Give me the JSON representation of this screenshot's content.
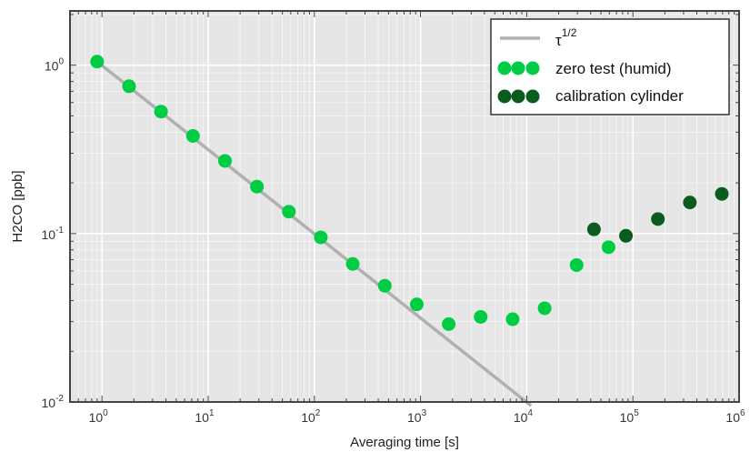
{
  "chart_data": {
    "type": "scatter",
    "title": "",
    "xlabel": "Averaging time [s]",
    "ylabel": "H2CO [ppb]",
    "xscale": "log",
    "yscale": "log",
    "xlim": [
      0.5,
      1000000
    ],
    "ylim": [
      0.01,
      2.1
    ],
    "grid": true,
    "legend_position": "top-right",
    "x_ticks": [
      {
        "base": "10",
        "exp": "0"
      },
      {
        "base": "10",
        "exp": "1"
      },
      {
        "base": "10",
        "exp": "2"
      },
      {
        "base": "10",
        "exp": "3"
      },
      {
        "base": "10",
        "exp": "4"
      },
      {
        "base": "10",
        "exp": "5"
      },
      {
        "base": "10",
        "exp": "6"
      }
    ],
    "y_ticks": [
      {
        "base": "10",
        "exp": "-2"
      },
      {
        "base": "10",
        "exp": "-1"
      },
      {
        "base": "10",
        "exp": "0"
      }
    ],
    "series": [
      {
        "name": "τ^1/2",
        "legend_label": "τ",
        "legend_exp": "1/2",
        "kind": "line",
        "color": "#b0b0b0",
        "x": [
          0.9,
          11000
        ],
        "y": [
          1.05,
          0.0095
        ]
      },
      {
        "name": "zero test (humid)",
        "kind": "scatter",
        "color": "#00cc44",
        "x": [
          0.9,
          1.8,
          3.6,
          7.2,
          14.4,
          28.8,
          57.6,
          115,
          230,
          461,
          922,
          1843,
          3686,
          7373,
          14746,
          29491,
          58982
        ],
        "y": [
          1.05,
          0.75,
          0.53,
          0.38,
          0.27,
          0.19,
          0.135,
          0.095,
          0.066,
          0.049,
          0.038,
          0.029,
          0.032,
          0.031,
          0.036,
          0.065,
          0.083
        ]
      },
      {
        "name": "calibration cylinder",
        "kind": "scatter",
        "color": "#0a5c1e",
        "x": [
          43000,
          86000,
          172000,
          344000,
          688000
        ],
        "y": [
          0.106,
          0.097,
          0.122,
          0.153,
          0.172
        ]
      }
    ]
  }
}
